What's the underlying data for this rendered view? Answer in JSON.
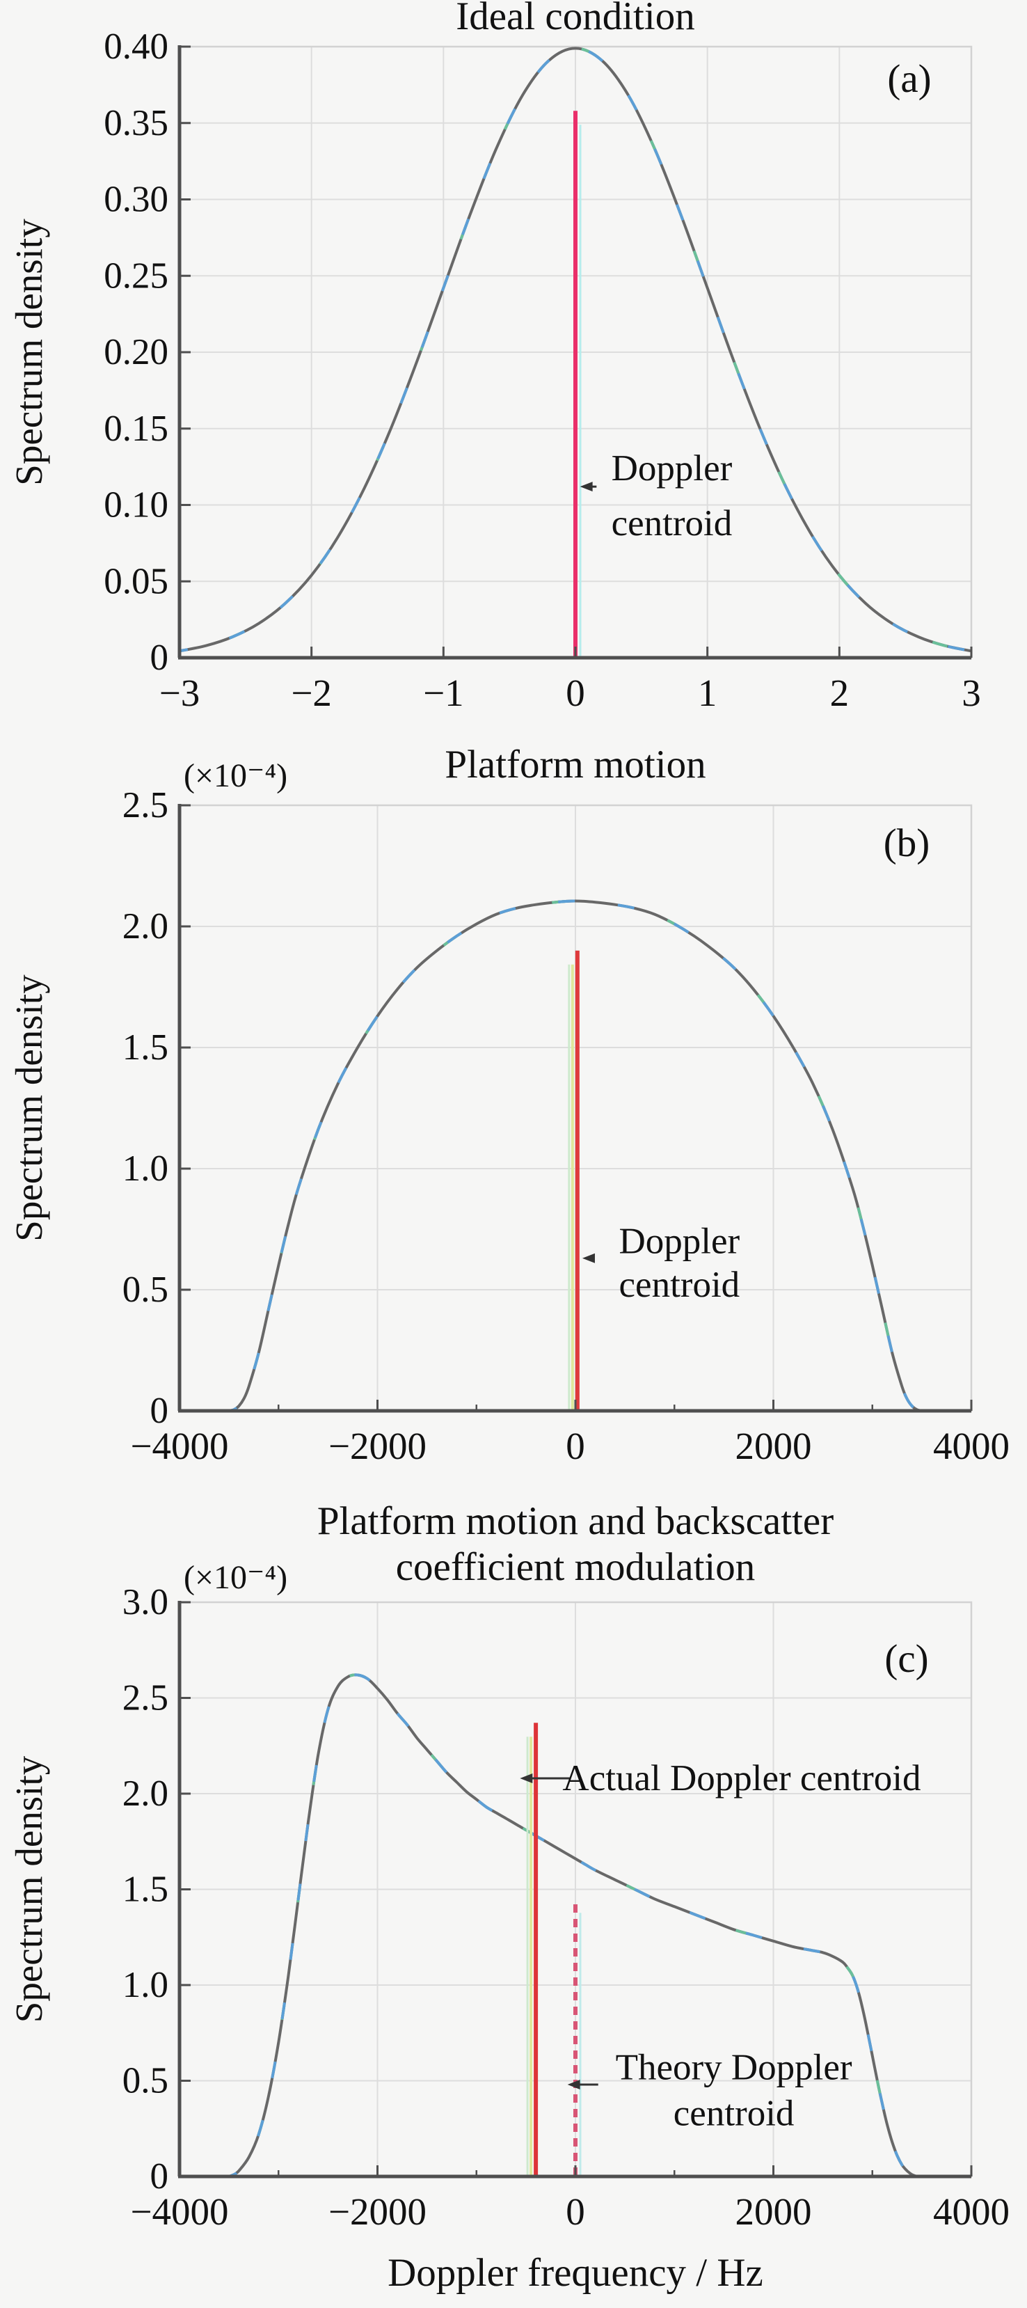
{
  "page": {
    "background": "#f6f6f5",
    "text_color": "#111111"
  },
  "chart_data": [
    {
      "id": "a",
      "type": "line",
      "panel_label": "(a)",
      "title": "Ideal condition",
      "title2": "",
      "unit_label": "",
      "xlabel": "",
      "ylabel": "Spectrum density",
      "xlim": [
        -3,
        3
      ],
      "ylim": [
        0,
        0.4
      ],
      "grid": true,
      "x_ticks": [
        -3,
        -2,
        -1,
        0,
        1,
        2,
        3
      ],
      "x_tick_labels": [
        "−3",
        "−2",
        "−1",
        "0",
        "1",
        "2",
        "3"
      ],
      "x_minor_ticks": [],
      "y_ticks": [
        0,
        0.05,
        0.1,
        0.15,
        0.2,
        0.25,
        0.3,
        0.35,
        0.4
      ],
      "y_tick_labels": [
        "0",
        "0.05",
        "0.10",
        "0.15",
        "0.20",
        "0.25",
        "0.30",
        "0.35",
        "0.40"
      ],
      "curve_colors": {
        "base": "#686868",
        "dash1": "#5c9fd6",
        "dash2": "#6abf9a"
      },
      "curve": {
        "name": "spectrum-density-curve",
        "points": [
          [
            -3.0,
            0.0044
          ],
          [
            -2.8,
            0.0079
          ],
          [
            -2.6,
            0.0136
          ],
          [
            -2.4,
            0.0224
          ],
          [
            -2.2,
            0.0355
          ],
          [
            -2.0,
            0.054
          ],
          [
            -1.8,
            0.079
          ],
          [
            -1.6,
            0.1109
          ],
          [
            -1.4,
            0.1497
          ],
          [
            -1.2,
            0.1942
          ],
          [
            -1.0,
            0.242
          ],
          [
            -0.8,
            0.2897
          ],
          [
            -0.6,
            0.3332
          ],
          [
            -0.4,
            0.3683
          ],
          [
            -0.2,
            0.391
          ],
          [
            0.0,
            0.3989
          ],
          [
            0.2,
            0.391
          ],
          [
            0.4,
            0.3683
          ],
          [
            0.6,
            0.3332
          ],
          [
            0.8,
            0.2897
          ],
          [
            1.0,
            0.242
          ],
          [
            1.2,
            0.1942
          ],
          [
            1.4,
            0.1497
          ],
          [
            1.6,
            0.1109
          ],
          [
            1.8,
            0.079
          ],
          [
            2.0,
            0.054
          ],
          [
            2.2,
            0.0355
          ],
          [
            2.4,
            0.0224
          ],
          [
            2.6,
            0.0136
          ],
          [
            2.8,
            0.0079
          ],
          [
            3.0,
            0.0044
          ]
        ]
      },
      "centroid_lines": [
        {
          "name": "doppler-centroid-line",
          "style": "solid",
          "x": 0,
          "y_top": 0.358,
          "color": "#ea2f6a",
          "stripes": [
            {
              "dx": 7,
              "color": "#b5ecec",
              "width": 3
            }
          ]
        }
      ],
      "annotations": [
        {
          "name": "doppler-centroid-label",
          "lines": [
            "Doppler",
            "centroid"
          ],
          "center_x": 0.73,
          "line_y": [
            0.124,
            0.088
          ],
          "arrow": {
            "y": 0.112,
            "from_x": 0.16,
            "to_x": 0.035
          }
        }
      ]
    },
    {
      "id": "b",
      "type": "line",
      "panel_label": "(b)",
      "title": "Platform motion",
      "title2": "",
      "unit_label": "(×10⁻⁴)",
      "xlabel": "",
      "ylabel": "Spectrum density",
      "xlim": [
        -4000,
        4000
      ],
      "ylim": [
        0,
        2.5
      ],
      "grid": true,
      "x_ticks": [
        -4000,
        -2000,
        0,
        2000,
        4000
      ],
      "x_tick_labels": [
        "−4000",
        "−2000",
        "0",
        "2000",
        "4000"
      ],
      "x_minor_ticks": [
        -3000,
        -1000,
        1000,
        3000
      ],
      "y_ticks": [
        0,
        0.5,
        1.0,
        1.5,
        2.0,
        2.5
      ],
      "y_tick_labels": [
        "0",
        "0.5",
        "1.0",
        "1.5",
        "2.0",
        "2.5"
      ],
      "curve_colors": {
        "base": "#686868",
        "dash1": "#5c9fd6",
        "dash2": "#6abf9a"
      },
      "curve": {
        "name": "spectrum-density-curve",
        "points": [
          [
            -3500,
            0
          ],
          [
            -3450,
            0.005
          ],
          [
            -3400,
            0.02
          ],
          [
            -3350,
            0.05
          ],
          [
            -3300,
            0.1
          ],
          [
            -3200,
            0.24
          ],
          [
            -3100,
            0.42
          ],
          [
            -3000,
            0.6
          ],
          [
            -2900,
            0.77
          ],
          [
            -2800,
            0.92
          ],
          [
            -2600,
            1.16
          ],
          [
            -2400,
            1.35
          ],
          [
            -2200,
            1.5
          ],
          [
            -2000,
            1.63
          ],
          [
            -1800,
            1.74
          ],
          [
            -1600,
            1.83
          ],
          [
            -1400,
            1.9
          ],
          [
            -1200,
            1.96
          ],
          [
            -1000,
            2.01
          ],
          [
            -800,
            2.05
          ],
          [
            -600,
            2.075
          ],
          [
            -400,
            2.09
          ],
          [
            -200,
            2.1
          ],
          [
            0,
            2.105
          ],
          [
            200,
            2.1
          ],
          [
            400,
            2.09
          ],
          [
            600,
            2.075
          ],
          [
            800,
            2.05
          ],
          [
            1000,
            2.01
          ],
          [
            1200,
            1.96
          ],
          [
            1400,
            1.9
          ],
          [
            1600,
            1.83
          ],
          [
            1800,
            1.74
          ],
          [
            2000,
            1.63
          ],
          [
            2200,
            1.5
          ],
          [
            2400,
            1.35
          ],
          [
            2600,
            1.16
          ],
          [
            2800,
            0.92
          ],
          [
            2900,
            0.77
          ],
          [
            3000,
            0.6
          ],
          [
            3100,
            0.42
          ],
          [
            3200,
            0.24
          ],
          [
            3300,
            0.1
          ],
          [
            3350,
            0.05
          ],
          [
            3400,
            0.02
          ],
          [
            3450,
            0.005
          ],
          [
            3500,
            0
          ]
        ]
      },
      "centroid_lines": [
        {
          "name": "doppler-centroid-line",
          "style": "solid",
          "x": 20,
          "y_top": 1.9,
          "color": "#df3a3c",
          "stripes": [
            {
              "dx": -7,
              "color": "#dfe79b",
              "width": 4
            },
            {
              "dx": -12,
              "color": "#cdeacd",
              "width": 3
            }
          ]
        }
      ],
      "annotations": [
        {
          "name": "doppler-centroid-label",
          "lines": [
            "Doppler",
            "centroid"
          ],
          "center_x": 1050,
          "line_y": [
            0.7,
            0.52
          ],
          "arrow": {
            "y": 0.63,
            "from_x": 180,
            "to_x": 70
          }
        }
      ]
    },
    {
      "id": "c",
      "type": "line",
      "panel_label": "(c)",
      "title": "Platform motion and backscatter",
      "title2": "coefficient modulation",
      "unit_label": "(×10⁻⁴)",
      "xlabel": "Doppler frequency / Hz",
      "ylabel": "Spectrum density",
      "xlim": [
        -4000,
        4000
      ],
      "ylim": [
        0,
        3.0
      ],
      "grid": true,
      "x_ticks": [
        -4000,
        -2000,
        0,
        2000,
        4000
      ],
      "x_tick_labels": [
        "−4000",
        "−2000",
        "0",
        "2000",
        "4000"
      ],
      "x_minor_ticks": [
        -3000,
        -1000,
        1000,
        3000
      ],
      "y_ticks": [
        0,
        0.5,
        1.0,
        1.5,
        2.0,
        2.5,
        3.0
      ],
      "y_tick_labels": [
        "0",
        "0.5",
        "1.0",
        "1.5",
        "2.0",
        "2.5",
        "3.0"
      ],
      "curve_colors": {
        "base": "#686868",
        "dash1": "#5c9fd6",
        "dash2": "#6abf9a"
      },
      "curve": {
        "name": "spectrum-density-curve",
        "points": [
          [
            -3500,
            0
          ],
          [
            -3450,
            0.01
          ],
          [
            -3400,
            0.03
          ],
          [
            -3300,
            0.1
          ],
          [
            -3200,
            0.22
          ],
          [
            -3100,
            0.42
          ],
          [
            -3000,
            0.7
          ],
          [
            -2900,
            1.05
          ],
          [
            -2800,
            1.45
          ],
          [
            -2700,
            1.85
          ],
          [
            -2600,
            2.2
          ],
          [
            -2500,
            2.44
          ],
          [
            -2400,
            2.56
          ],
          [
            -2300,
            2.61
          ],
          [
            -2200,
            2.62
          ],
          [
            -2100,
            2.6
          ],
          [
            -2000,
            2.55
          ],
          [
            -1900,
            2.49
          ],
          [
            -1800,
            2.42
          ],
          [
            -1700,
            2.36
          ],
          [
            -1600,
            2.29
          ],
          [
            -1500,
            2.23
          ],
          [
            -1400,
            2.17
          ],
          [
            -1300,
            2.11
          ],
          [
            -1200,
            2.06
          ],
          [
            -1100,
            2.01
          ],
          [
            -1000,
            1.97
          ],
          [
            -900,
            1.93
          ],
          [
            -800,
            1.9
          ],
          [
            -700,
            1.87
          ],
          [
            -600,
            1.84
          ],
          [
            -500,
            1.81
          ],
          [
            -400,
            1.78
          ],
          [
            -300,
            1.75
          ],
          [
            -200,
            1.72
          ],
          [
            -100,
            1.69
          ],
          [
            0,
            1.66
          ],
          [
            100,
            1.63
          ],
          [
            200,
            1.6
          ],
          [
            400,
            1.55
          ],
          [
            600,
            1.5
          ],
          [
            800,
            1.45
          ],
          [
            1000,
            1.41
          ],
          [
            1200,
            1.37
          ],
          [
            1400,
            1.33
          ],
          [
            1600,
            1.29
          ],
          [
            1800,
            1.26
          ],
          [
            2000,
            1.23
          ],
          [
            2200,
            1.2
          ],
          [
            2400,
            1.18
          ],
          [
            2500,
            1.17
          ],
          [
            2600,
            1.15
          ],
          [
            2700,
            1.12
          ],
          [
            2750,
            1.09
          ],
          [
            2800,
            1.05
          ],
          [
            2850,
            0.98
          ],
          [
            2900,
            0.88
          ],
          [
            2950,
            0.76
          ],
          [
            3000,
            0.63
          ],
          [
            3050,
            0.5
          ],
          [
            3100,
            0.38
          ],
          [
            3150,
            0.27
          ],
          [
            3200,
            0.18
          ],
          [
            3250,
            0.11
          ],
          [
            3300,
            0.06
          ],
          [
            3350,
            0.03
          ],
          [
            3400,
            0.01
          ],
          [
            3450,
            0
          ]
        ]
      },
      "centroid_lines": [
        {
          "name": "actual-doppler-centroid-line",
          "style": "solid",
          "x": -400,
          "y_top": 2.37,
          "color": "#dd3438",
          "stripes": [
            {
              "dx": -7,
              "color": "#dfe79b",
              "width": 4
            },
            {
              "dx": -12,
              "color": "#cdeacd",
              "width": 3
            }
          ]
        },
        {
          "name": "theory-doppler-centroid-line",
          "style": "dashed",
          "x": 0,
          "y_top": 1.45,
          "color": "#d85575",
          "stripes": [
            {
              "dx": 7,
              "color": "#bfeaea",
              "width": 3
            }
          ]
        }
      ],
      "annotations": [
        {
          "name": "actual-doppler-centroid-label",
          "lines": [
            "Actual Doppler centroid"
          ],
          "center_x": 1680,
          "line_y": [
            2.08
          ],
          "arrow": {
            "y": 2.08,
            "from_x": -60,
            "to_x": -560
          }
        },
        {
          "name": "theory-doppler-centroid-label",
          "lines": [
            "Theory Doppler",
            "centroid"
          ],
          "center_x": 1600,
          "line_y": [
            0.57,
            0.33
          ],
          "arrow": {
            "y": 0.48,
            "from_x": 230,
            "to_x": -80
          }
        }
      ]
    }
  ]
}
